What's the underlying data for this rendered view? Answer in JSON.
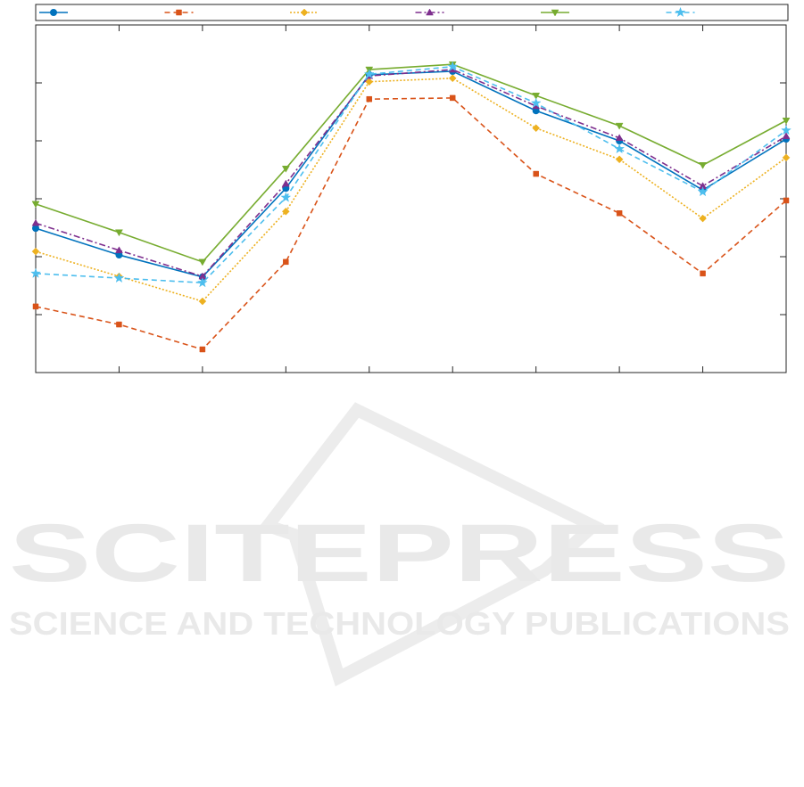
{
  "chart_data": {
    "type": "line",
    "categories": [
      null,
      null,
      null,
      null,
      null,
      null,
      null,
      null,
      null,
      null
    ],
    "ylim": [
      0,
      6
    ],
    "yticks": [
      0,
      1,
      2,
      3,
      4,
      5,
      6
    ],
    "grid": false,
    "legend": "top",
    "series": [
      {
        "color": "#0072BD",
        "marker": "circle",
        "dash": "solid",
        "values": [
          2.49,
          2.03,
          1.65,
          3.18,
          5.14,
          5.2,
          4.52,
          4.0,
          3.15,
          4.03
        ]
      },
      {
        "color": "#D95319",
        "marker": "square",
        "dash": "dashed",
        "values": [
          1.14,
          0.83,
          0.4,
          1.91,
          4.72,
          4.74,
          3.43,
          2.75,
          1.71,
          2.97
        ]
      },
      {
        "color": "#EDB120",
        "marker": "diamond",
        "dash": "dotted",
        "values": [
          2.09,
          1.66,
          1.23,
          2.78,
          5.02,
          5.08,
          4.22,
          3.68,
          2.66,
          3.71
        ]
      },
      {
        "color": "#7E2F8E",
        "marker": "triangle-up",
        "dash": "dashdot",
        "values": [
          2.58,
          2.11,
          1.66,
          3.26,
          5.12,
          5.23,
          4.6,
          4.05,
          3.22,
          4.08
        ]
      },
      {
        "color": "#77AC30",
        "marker": "triangle-down",
        "dash": "solid",
        "values": [
          2.91,
          2.42,
          1.91,
          3.52,
          5.23,
          5.32,
          4.78,
          4.26,
          3.58,
          4.35
        ]
      },
      {
        "color": "#4DBEEE",
        "marker": "star",
        "dash": "dashed",
        "values": [
          1.71,
          1.63,
          1.55,
          3.02,
          5.15,
          5.28,
          4.65,
          3.86,
          3.12,
          4.18
        ]
      }
    ]
  },
  "watermark": {
    "title": "SCITEPRESS",
    "subtitle": "SCIENCE AND TECHNOLOGY PUBLICATIONS"
  }
}
